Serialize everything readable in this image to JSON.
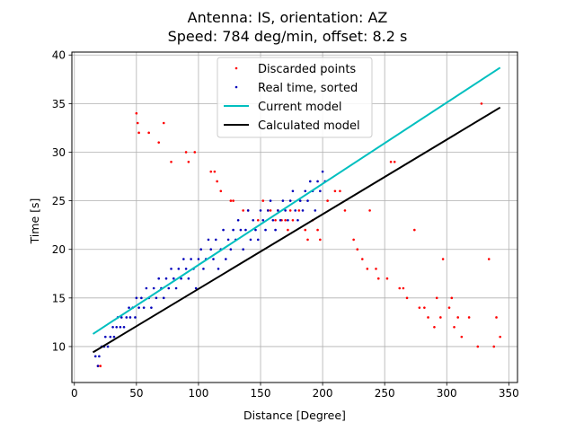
{
  "chart_data": {
    "type": "scatter",
    "title_line1": "Antenna: IS, orientation:  AZ",
    "title_line2": "Speed: 784 deg/min, offset: 8.2 s",
    "xlabel": "Distance [Degree]",
    "ylabel": "Time [s]",
    "xlim": [
      -2,
      357
    ],
    "ylim": [
      6.3,
      40.3
    ],
    "xticks": [
      0,
      50,
      100,
      150,
      200,
      250,
      300,
      350
    ],
    "yticks": [
      10,
      15,
      20,
      25,
      30,
      35,
      40
    ],
    "grid": true,
    "legend_position": "top-center",
    "series": [
      {
        "name": "Discarded points",
        "kind": "scatter",
        "color": "#ff0000",
        "points": [
          [
            19,
            8
          ],
          [
            21,
            8
          ],
          [
            50,
            34
          ],
          [
            51,
            33
          ],
          [
            52,
            32
          ],
          [
            60,
            32
          ],
          [
            68,
            31
          ],
          [
            72,
            33
          ],
          [
            78,
            29
          ],
          [
            90,
            30
          ],
          [
            92,
            29
          ],
          [
            97,
            30
          ],
          [
            110,
            28
          ],
          [
            113,
            28
          ],
          [
            115,
            27
          ],
          [
            118,
            26
          ],
          [
            126,
            25
          ],
          [
            128,
            25
          ],
          [
            136,
            24
          ],
          [
            140,
            24
          ],
          [
            148,
            23
          ],
          [
            152,
            25
          ],
          [
            156,
            24
          ],
          [
            158,
            24
          ],
          [
            162,
            23
          ],
          [
            164,
            24
          ],
          [
            167,
            23
          ],
          [
            170,
            23
          ],
          [
            172,
            22
          ],
          [
            174,
            24
          ],
          [
            176,
            23
          ],
          [
            181,
            24
          ],
          [
            186,
            22
          ],
          [
            188,
            21
          ],
          [
            192,
            23
          ],
          [
            196,
            22
          ],
          [
            198,
            21
          ],
          [
            204,
            25
          ],
          [
            210,
            26
          ],
          [
            214,
            26
          ],
          [
            218,
            24
          ],
          [
            225,
            21
          ],
          [
            228,
            20
          ],
          [
            232,
            19
          ],
          [
            236,
            18
          ],
          [
            238,
            24
          ],
          [
            243,
            18
          ],
          [
            245,
            17
          ],
          [
            252,
            17
          ],
          [
            255,
            29
          ],
          [
            258,
            29
          ],
          [
            262,
            16
          ],
          [
            265,
            16
          ],
          [
            268,
            15
          ],
          [
            274,
            22
          ],
          [
            278,
            14
          ],
          [
            282,
            14
          ],
          [
            285,
            13
          ],
          [
            290,
            12
          ],
          [
            292,
            15
          ],
          [
            295,
            13
          ],
          [
            297,
            19
          ],
          [
            302,
            14
          ],
          [
            304,
            15
          ],
          [
            306,
            12
          ],
          [
            309,
            13
          ],
          [
            312,
            11
          ],
          [
            318,
            13
          ],
          [
            325,
            10
          ],
          [
            328,
            35
          ],
          [
            334,
            19
          ],
          [
            338,
            10
          ],
          [
            340,
            13
          ],
          [
            343,
            11
          ]
        ]
      },
      {
        "name": "Real time, sorted",
        "kind": "scatter",
        "color": "#0000bb",
        "points": [
          [
            17,
            9
          ],
          [
            19,
            8
          ],
          [
            20,
            9
          ],
          [
            22,
            10
          ],
          [
            24,
            10
          ],
          [
            25,
            11
          ],
          [
            27,
            10
          ],
          [
            29,
            11
          ],
          [
            31,
            12
          ],
          [
            32,
            11
          ],
          [
            34,
            12
          ],
          [
            35,
            13
          ],
          [
            37,
            12
          ],
          [
            38,
            13
          ],
          [
            40,
            12
          ],
          [
            42,
            13
          ],
          [
            44,
            14
          ],
          [
            45,
            13
          ],
          [
            47,
            14
          ],
          [
            49,
            13
          ],
          [
            50,
            15
          ],
          [
            52,
            14
          ],
          [
            54,
            15
          ],
          [
            56,
            14
          ],
          [
            58,
            16
          ],
          [
            60,
            15
          ],
          [
            62,
            14
          ],
          [
            64,
            16
          ],
          [
            66,
            15
          ],
          [
            68,
            17
          ],
          [
            70,
            16
          ],
          [
            72,
            15
          ],
          [
            74,
            17
          ],
          [
            76,
            16
          ],
          [
            78,
            18
          ],
          [
            80,
            17
          ],
          [
            82,
            16
          ],
          [
            84,
            18
          ],
          [
            86,
            17
          ],
          [
            88,
            19
          ],
          [
            90,
            18
          ],
          [
            92,
            17
          ],
          [
            94,
            19
          ],
          [
            96,
            18
          ],
          [
            98,
            16
          ],
          [
            100,
            19
          ],
          [
            102,
            20
          ],
          [
            104,
            18
          ],
          [
            106,
            19
          ],
          [
            108,
            21
          ],
          [
            110,
            20
          ],
          [
            112,
            19
          ],
          [
            114,
            21
          ],
          [
            116,
            18
          ],
          [
            118,
            20
          ],
          [
            120,
            22
          ],
          [
            122,
            19
          ],
          [
            124,
            21
          ],
          [
            126,
            20
          ],
          [
            128,
            22
          ],
          [
            130,
            21
          ],
          [
            132,
            23
          ],
          [
            134,
            22
          ],
          [
            136,
            20
          ],
          [
            138,
            22
          ],
          [
            140,
            24
          ],
          [
            142,
            21
          ],
          [
            144,
            23
          ],
          [
            146,
            22
          ],
          [
            148,
            21
          ],
          [
            150,
            24
          ],
          [
            152,
            23
          ],
          [
            154,
            22
          ],
          [
            156,
            24
          ],
          [
            158,
            25
          ],
          [
            160,
            23
          ],
          [
            162,
            22
          ],
          [
            164,
            24
          ],
          [
            166,
            23
          ],
          [
            168,
            25
          ],
          [
            170,
            24
          ],
          [
            172,
            23
          ],
          [
            174,
            25
          ],
          [
            176,
            26
          ],
          [
            178,
            24
          ],
          [
            180,
            23
          ],
          [
            182,
            25
          ],
          [
            184,
            24
          ],
          [
            186,
            26
          ],
          [
            188,
            25
          ],
          [
            190,
            27
          ],
          [
            192,
            26
          ],
          [
            194,
            24
          ],
          [
            196,
            27
          ],
          [
            198,
            26
          ],
          [
            200,
            28
          ],
          [
            202,
            27
          ]
        ]
      },
      {
        "name": "Current model",
        "kind": "line",
        "color": "#00bfbf",
        "points": [
          [
            15,
            11.3
          ],
          [
            343,
            38.7
          ]
        ]
      },
      {
        "name": "Calculated model",
        "kind": "line",
        "color": "#000000",
        "points": [
          [
            15,
            9.4
          ],
          [
            343,
            34.6
          ]
        ]
      }
    ]
  }
}
